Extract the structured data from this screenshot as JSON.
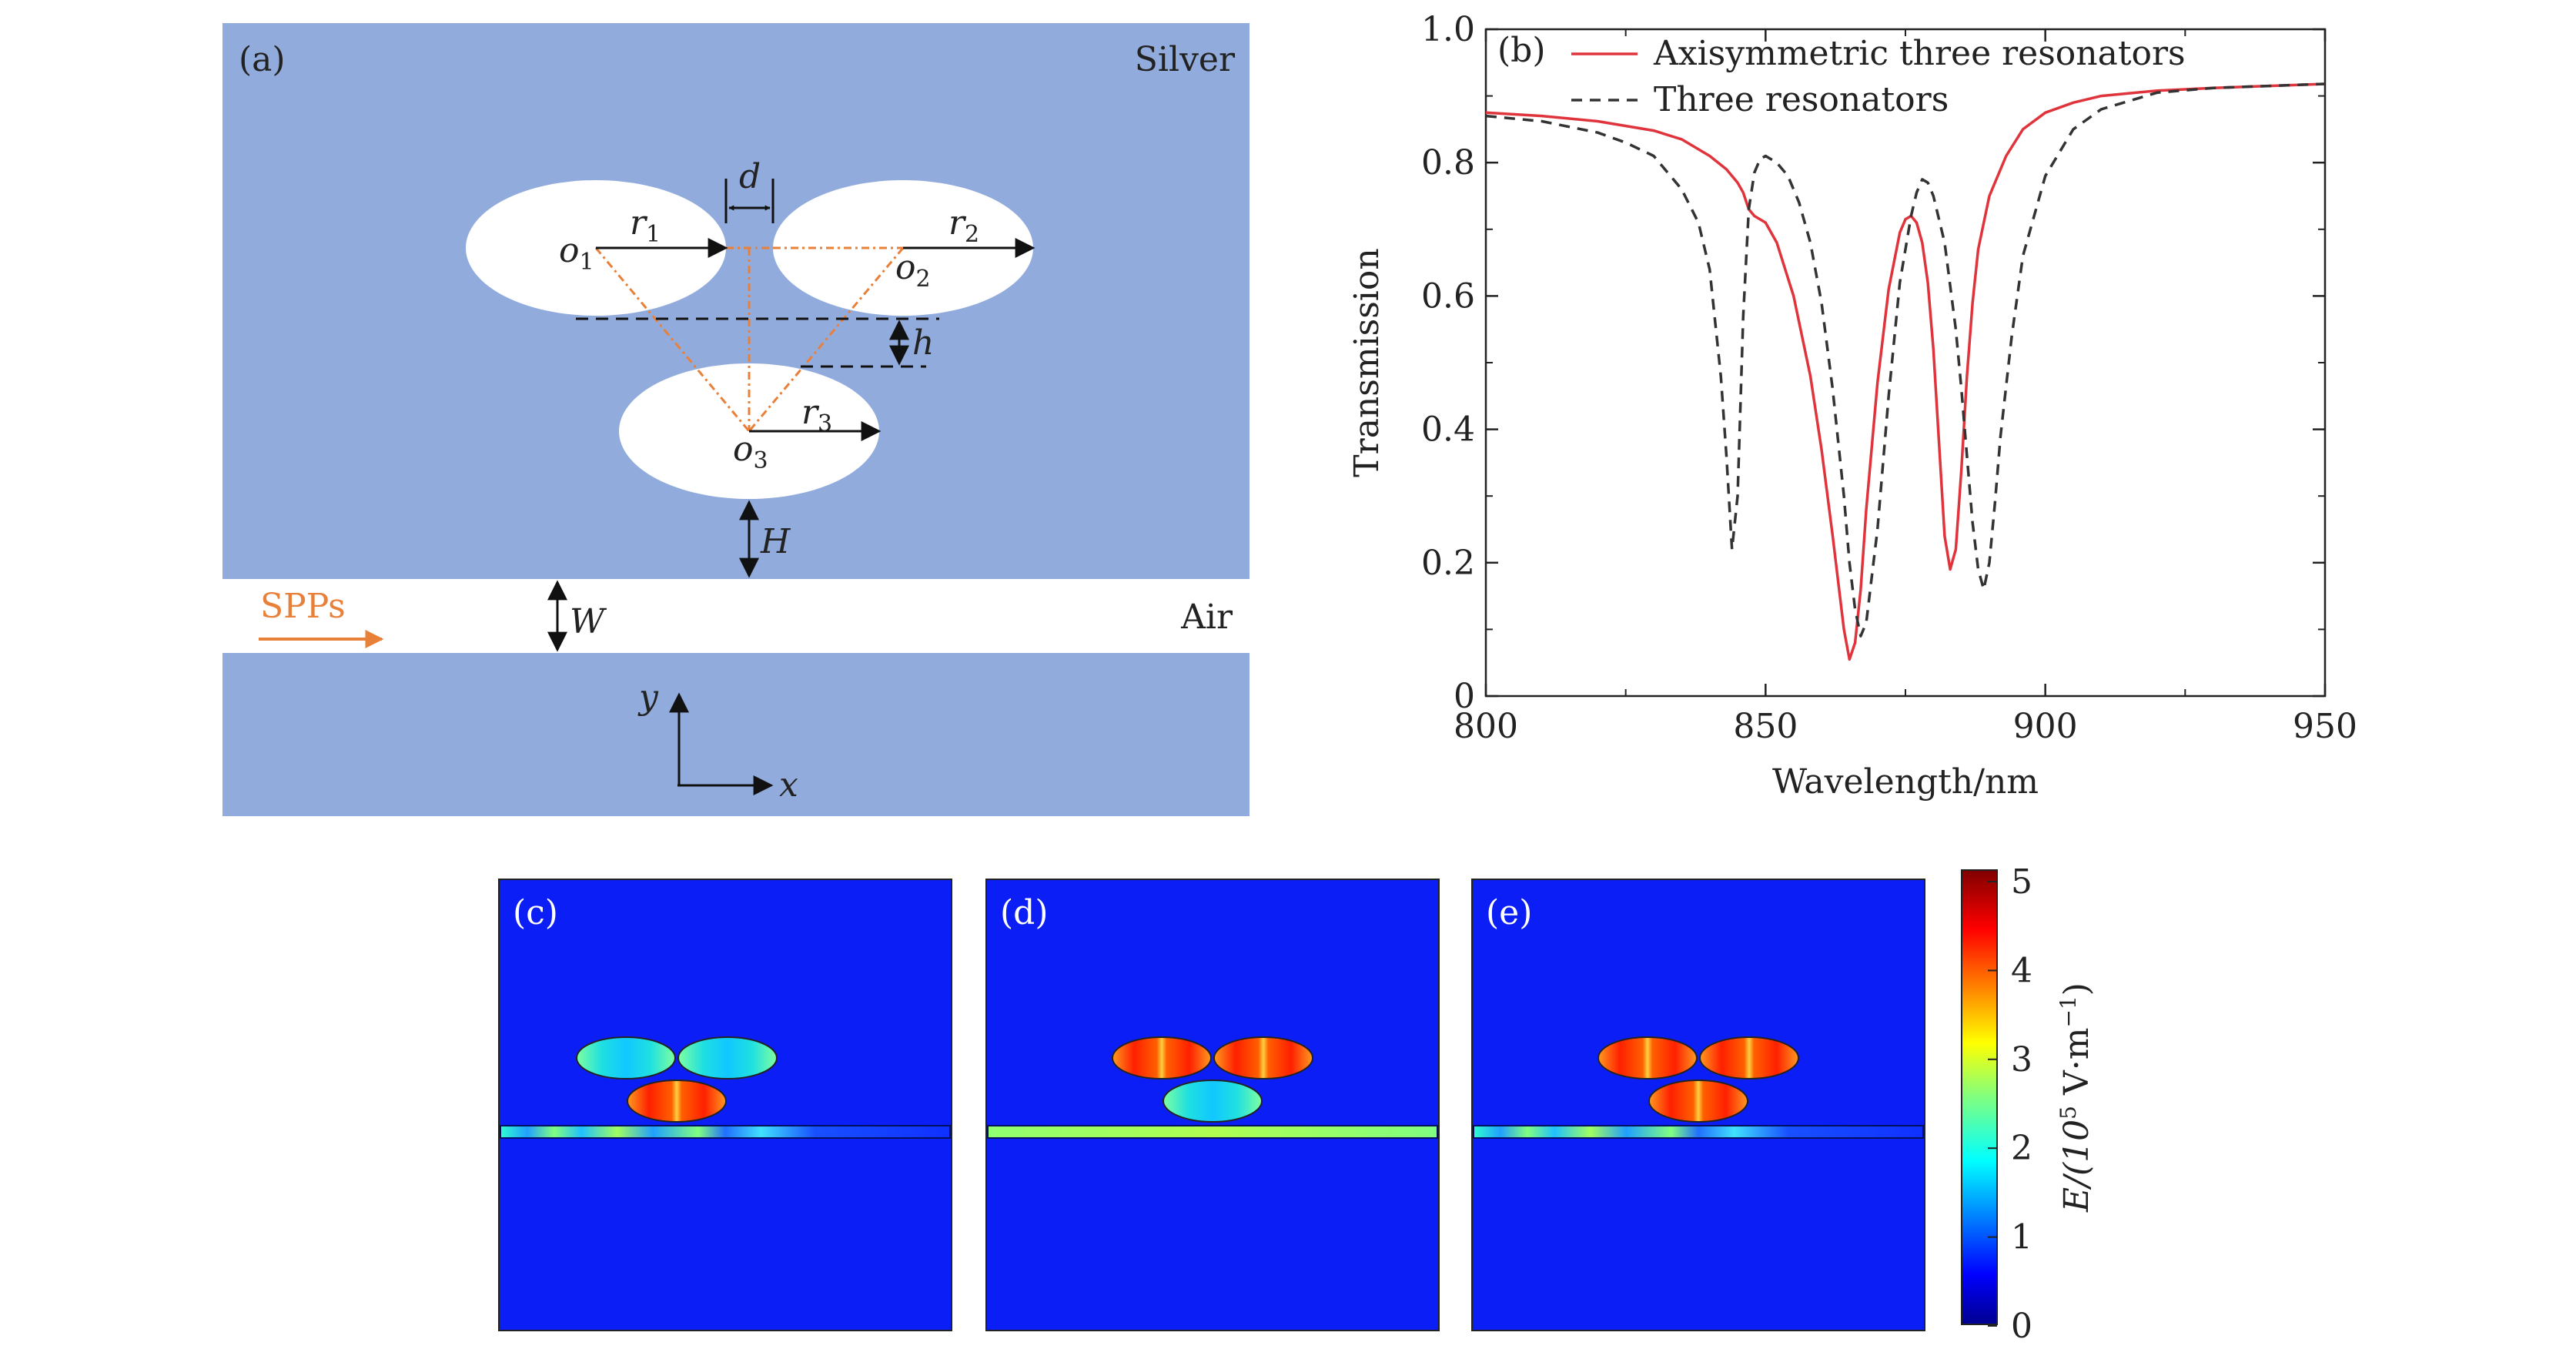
{
  "panel_a": {
    "label": "(a)",
    "metal": "Silver",
    "gap": "Air",
    "source": "SPPs",
    "o1": "o",
    "o1_sub": "1",
    "o2": "o",
    "o2_sub": "2",
    "o3": "o",
    "o3_sub": "3",
    "r1": "r",
    "r1_sub": "1",
    "r2": "r",
    "r2_sub": "2",
    "r3": "r",
    "r3_sub": "3",
    "d": "d",
    "h": "h",
    "H": "H",
    "W": "W",
    "axis_y": "y",
    "axis_x": "x"
  },
  "panel_c": {
    "label": "(c)"
  },
  "panel_d": {
    "label": "(d)"
  },
  "panel_e": {
    "label": "(e)"
  },
  "colorbar": {
    "ticks": [
      "0",
      "1",
      "2",
      "3",
      "4",
      "5"
    ],
    "label_main": "E/(10",
    "label_exp": "5",
    "label_unit": " V·m",
    "label_exp2": "−1",
    "label_close": ")"
  },
  "colors": {
    "silver": "#91acdc",
    "field_bg": "#0c1ef6",
    "curve_red": "#e0343c",
    "curve_dash": "#333333",
    "orange": "#e8803a"
  },
  "chart_data": {
    "type": "line",
    "panel_label": "(b)",
    "xlabel": "Wavelength/nm",
    "ylabel": "Transmission",
    "xlim": [
      800,
      950
    ],
    "ylim": [
      0,
      1.0
    ],
    "xticks": [
      "800",
      "850",
      "900",
      "950"
    ],
    "yticks": [
      "0",
      "0.2",
      "0.4",
      "0.6",
      "0.8",
      "1.0"
    ],
    "legend_position": "top",
    "series": [
      {
        "name": "Axisymmetric three resonators",
        "style": "solid",
        "x": [
          800,
          810,
          820,
          830,
          835,
          840,
          843,
          845,
          846,
          847,
          848,
          850,
          852,
          855,
          858,
          860,
          862,
          864,
          865,
          866,
          867,
          868,
          870,
          872,
          874,
          875,
          876,
          877,
          878,
          879,
          880,
          881,
          882,
          883,
          884,
          885,
          886,
          887,
          888,
          890,
          893,
          896,
          900,
          905,
          910,
          920,
          930,
          940,
          950
        ],
        "y": [
          0.875,
          0.87,
          0.862,
          0.848,
          0.835,
          0.81,
          0.79,
          0.77,
          0.755,
          0.73,
          0.72,
          0.71,
          0.68,
          0.6,
          0.48,
          0.37,
          0.24,
          0.1,
          0.055,
          0.08,
          0.16,
          0.28,
          0.47,
          0.61,
          0.695,
          0.715,
          0.72,
          0.71,
          0.68,
          0.62,
          0.52,
          0.38,
          0.24,
          0.19,
          0.22,
          0.34,
          0.48,
          0.59,
          0.67,
          0.75,
          0.81,
          0.85,
          0.875,
          0.89,
          0.9,
          0.908,
          0.912,
          0.915,
          0.918
        ]
      },
      {
        "name": "Three resonators",
        "style": "dashed",
        "x": [
          800,
          810,
          820,
          825,
          830,
          835,
          838,
          840,
          842,
          843,
          844,
          845,
          846,
          847,
          848,
          849,
          850,
          852,
          854,
          856,
          858,
          860,
          862,
          864,
          865,
          866,
          867,
          868,
          870,
          872,
          874,
          876,
          877,
          878,
          879,
          880,
          882,
          884,
          885,
          886,
          887,
          888,
          889,
          890,
          891,
          892,
          894,
          896,
          900,
          905,
          910,
          920,
          930,
          940,
          950
        ],
        "y": [
          0.87,
          0.862,
          0.845,
          0.83,
          0.81,
          0.76,
          0.71,
          0.64,
          0.48,
          0.36,
          0.22,
          0.3,
          0.57,
          0.73,
          0.785,
          0.805,
          0.81,
          0.8,
          0.78,
          0.74,
          0.68,
          0.59,
          0.46,
          0.3,
          0.2,
          0.13,
          0.09,
          0.11,
          0.25,
          0.45,
          0.62,
          0.72,
          0.755,
          0.775,
          0.77,
          0.75,
          0.68,
          0.55,
          0.46,
          0.36,
          0.26,
          0.19,
          0.16,
          0.2,
          0.29,
          0.39,
          0.54,
          0.66,
          0.78,
          0.85,
          0.88,
          0.905,
          0.912,
          0.915,
          0.918
        ]
      }
    ]
  }
}
